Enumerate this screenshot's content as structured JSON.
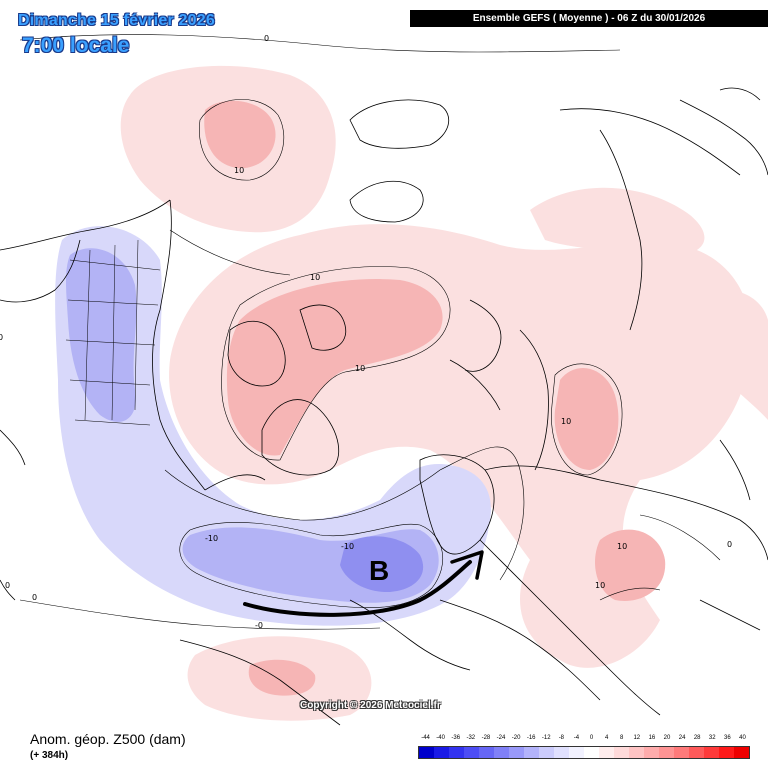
{
  "header": {
    "date_line": "Dimanche 15 février 2026",
    "time_line": "7:00 locale",
    "model_line": "Ensemble GEFS  ( Moyenne )  -  06 Z du 30/01/2026"
  },
  "footer": {
    "title": "Anom. géop. Z500 (dam)",
    "lead_time": "(+ 384h)",
    "copyright": "Copyright © 2026 Meteociel.fr"
  },
  "annotation": {
    "letter": "B"
  },
  "contour_labels": [
    "0",
    "10",
    "10",
    "10",
    "10",
    "10",
    "10",
    "-10",
    "-10",
    "0",
    "0",
    "-0",
    "0",
    "0"
  ],
  "scale": {
    "labels": [
      "-44",
      "-40",
      "-36",
      "-32",
      "-28",
      "-24",
      "-20",
      "-16",
      "-12",
      "-8",
      "-4",
      "0",
      "4",
      "8",
      "12",
      "16",
      "20",
      "24",
      "28",
      "32",
      "36",
      "40"
    ],
    "colors": [
      "#0000cc",
      "#1a1ae6",
      "#3333f0",
      "#4d4df5",
      "#6666f5",
      "#8080f7",
      "#9999f9",
      "#b3b3fb",
      "#ccccfc",
      "#e0e0fe",
      "#f2f2ff",
      "#ffffff",
      "#ffeded",
      "#ffdada",
      "#ffc4c4",
      "#ffacac",
      "#ff9494",
      "#ff7a7a",
      "#ff5a5a",
      "#ff3a3a",
      "#ff1a1a",
      "#ee0000"
    ]
  }
}
